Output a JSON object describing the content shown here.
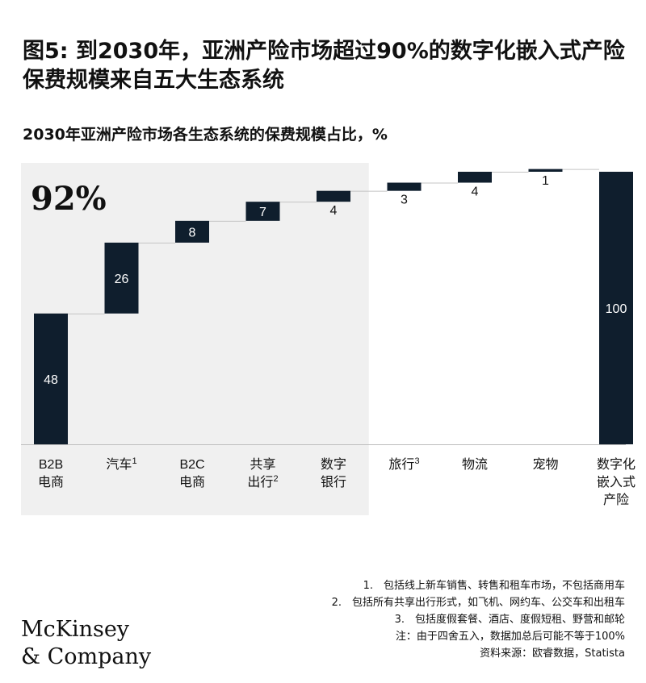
{
  "title": "图5: 到2030年，亚洲产险市场超过90%的数字化嵌入式产险保费规模来自五大生态系统",
  "subtitle": "2030年亚洲产险市场各生态系统的保费规模占比，%",
  "highlight_label": "92%",
  "chart_data": {
    "type": "bar",
    "subtype": "waterfall",
    "categories": [
      {
        "lines": [
          "B2B",
          "电商"
        ],
        "sup": ""
      },
      {
        "lines": [
          "汽车"
        ],
        "sup": "1"
      },
      {
        "lines": [
          "B2C",
          "电商"
        ],
        "sup": ""
      },
      {
        "lines": [
          "共享",
          "出行"
        ],
        "sup": "2"
      },
      {
        "lines": [
          "数字",
          "银行"
        ],
        "sup": ""
      },
      {
        "lines": [
          "旅行"
        ],
        "sup": "3"
      },
      {
        "lines": [
          "物流"
        ],
        "sup": ""
      },
      {
        "lines": [
          "宠物"
        ],
        "sup": ""
      },
      {
        "lines": [
          "数字化",
          "嵌入式",
          "产险"
        ],
        "sup": ""
      }
    ],
    "values": [
      48,
      26,
      8,
      7,
      4,
      3,
      4,
      1,
      100
    ],
    "value_labels": [
      "48",
      "26",
      "8",
      "7",
      "4",
      "3",
      "4",
      "1",
      "100"
    ],
    "total_index": 8,
    "highlight_count": 5,
    "ylim": [
      0,
      100
    ],
    "bar_color": "#0f1e2d",
    "highlight_bg": "#f0f0f0"
  },
  "footnotes": [
    "1.　包括线上新车销售、转售和租车市场，不包括商用车",
    "2.　包括所有共享出行形式，如飞机、网约车、公交车和出租车",
    "3.　包括度假套餐、酒店、度假短租、野营和邮轮",
    "注：由于四舍五入，数据加总后可能不等于100%",
    "资料来源：欧睿数据，Statista"
  ],
  "logo": {
    "line1": "McKinsey",
    "line2": "& Company"
  }
}
